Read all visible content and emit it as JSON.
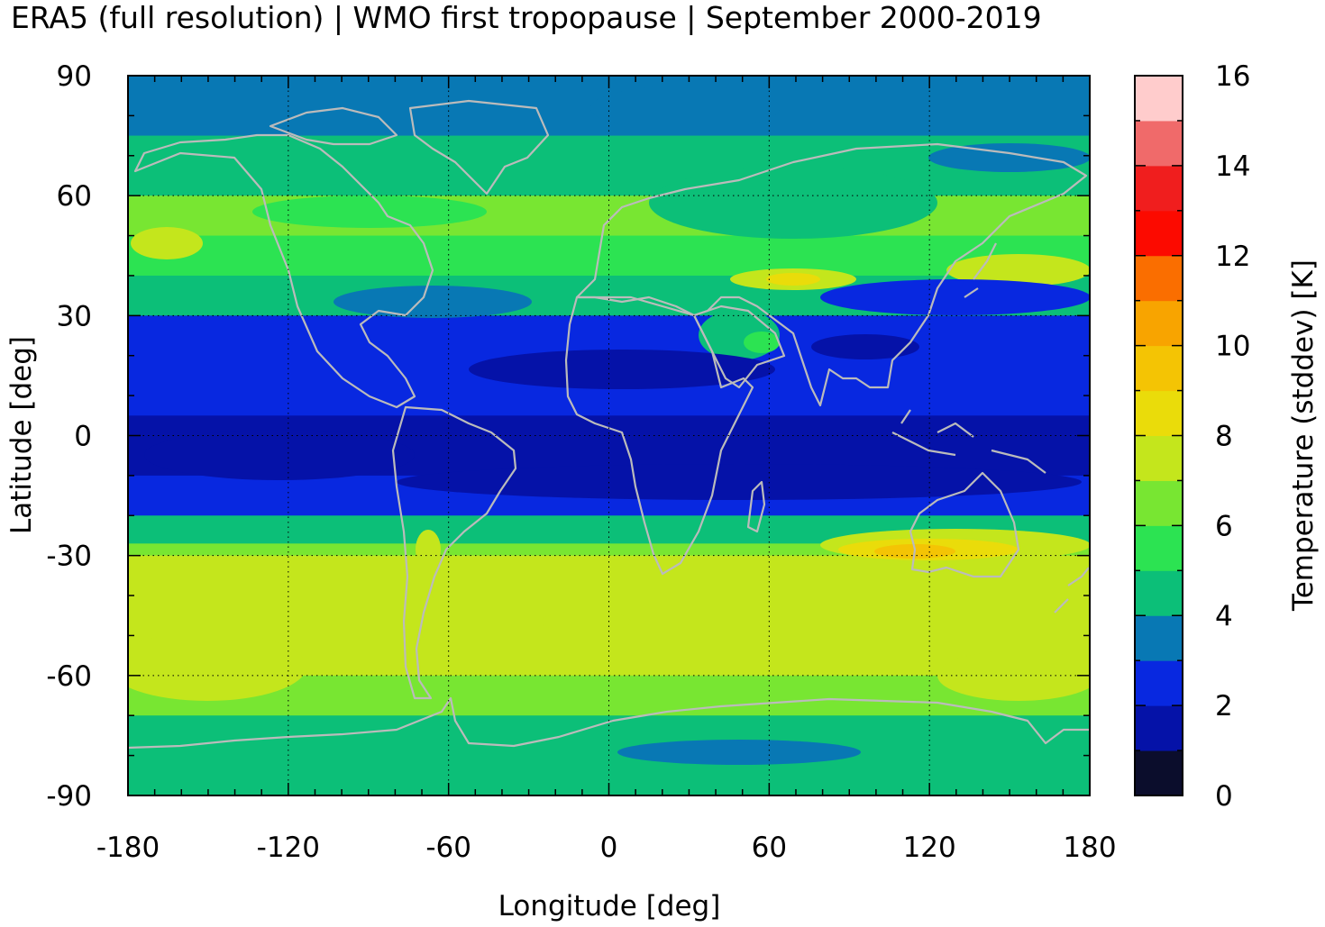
{
  "title": "ERA5 (full resolution) | WMO first tropopause | September 2000-2019",
  "chart_data": {
    "type": "heatmap",
    "xlabel": "Longitude [deg]",
    "ylabel": "Latitude [deg]",
    "xlim": [
      -180,
      180
    ],
    "ylim": [
      -90,
      90
    ],
    "xticks": [
      "-180",
      "-120",
      "-60",
      "0",
      "60",
      "120",
      "180"
    ],
    "yticks": [
      "90",
      "60",
      "30",
      "0",
      "-30",
      "-60",
      "-90"
    ],
    "grid": true,
    "colorbar": {
      "label": "Temperature (stddev) [K]",
      "range": [
        0,
        16
      ],
      "ticks": [
        "0",
        "2",
        "4",
        "6",
        "8",
        "10",
        "12",
        "14",
        "16"
      ],
      "levels": [
        {
          "from": 0,
          "to": 1,
          "color": "#0b0d2c"
        },
        {
          "from": 1,
          "to": 2,
          "color": "#0512a8"
        },
        {
          "from": 2,
          "to": 3,
          "color": "#0828e0"
        },
        {
          "from": 3,
          "to": 4,
          "color": "#0878b4"
        },
        {
          "from": 4,
          "to": 5,
          "color": "#0cbf78"
        },
        {
          "from": 5,
          "to": 6,
          "color": "#2ce352"
        },
        {
          "from": 6,
          "to": 7,
          "color": "#78e632"
        },
        {
          "from": 7,
          "to": 8,
          "color": "#c4e61c"
        },
        {
          "from": 8,
          "to": 9,
          "color": "#eadc0a"
        },
        {
          "from": 9,
          "to": 10,
          "color": "#f4c404"
        },
        {
          "from": 10,
          "to": 11,
          "color": "#f8a400"
        },
        {
          "from": 11,
          "to": 12,
          "color": "#fa6e00"
        },
        {
          "from": 12,
          "to": 13,
          "color": "#fc0a00"
        },
        {
          "from": 13,
          "to": 14,
          "color": "#f01e1e"
        },
        {
          "from": 14,
          "to": 15,
          "color": "#f06a6a"
        },
        {
          "from": 15,
          "to": 16,
          "color": "#ffcccc"
        }
      ]
    },
    "zonal_mean_stddev": [
      {
        "lat": 90,
        "value": 3.6
      },
      {
        "lat": 75,
        "value": 4.2
      },
      {
        "lat": 60,
        "value": 5.6
      },
      {
        "lat": 50,
        "value": 6.5
      },
      {
        "lat": 40,
        "value": 5.0
      },
      {
        "lat": 30,
        "value": 3.2
      },
      {
        "lat": 20,
        "value": 2.3
      },
      {
        "lat": 15,
        "value": 1.9
      },
      {
        "lat": 5,
        "value": 2.2
      },
      {
        "lat": 0,
        "value": 1.7
      },
      {
        "lat": -10,
        "value": 1.8
      },
      {
        "lat": -20,
        "value": 2.5
      },
      {
        "lat": -27,
        "value": 6.5
      },
      {
        "lat": -30,
        "value": 7.3
      },
      {
        "lat": -45,
        "value": 7.0
      },
      {
        "lat": -60,
        "value": 7.3
      },
      {
        "lat": -70,
        "value": 5.3
      },
      {
        "lat": -80,
        "value": 4.6
      },
      {
        "lat": -90,
        "value": 4.6
      }
    ],
    "coastline_color": "#bbbbbb"
  }
}
